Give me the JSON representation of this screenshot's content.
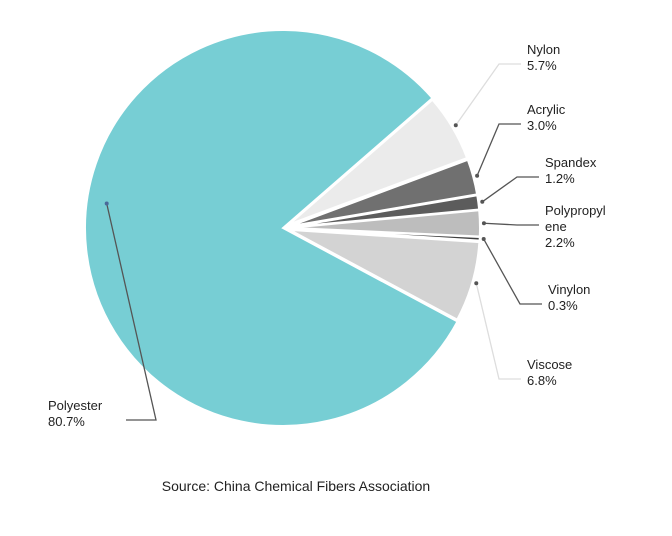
{
  "chart_data": {
    "type": "pie",
    "categories": [
      "Nylon",
      "Acrylic",
      "Spandex",
      "Polypropylene",
      "Vinylon",
      "Viscose",
      "Polyester"
    ],
    "values": [
      5.7,
      3.0,
      1.2,
      2.2,
      0.3,
      6.8,
      80.7
    ],
    "value_labels": [
      "5.7%",
      "3.0%",
      "1.2%",
      "2.2%",
      "0.3%",
      "6.8%",
      "80.7%"
    ],
    "colors": [
      "#ebebeb",
      "#707070",
      "#5c5c5c",
      "#bdbdbd",
      "#3f3f3f",
      "#d3d3d3",
      "#77ced4"
    ],
    "source": "Source: China Chemical Fibers Association"
  }
}
